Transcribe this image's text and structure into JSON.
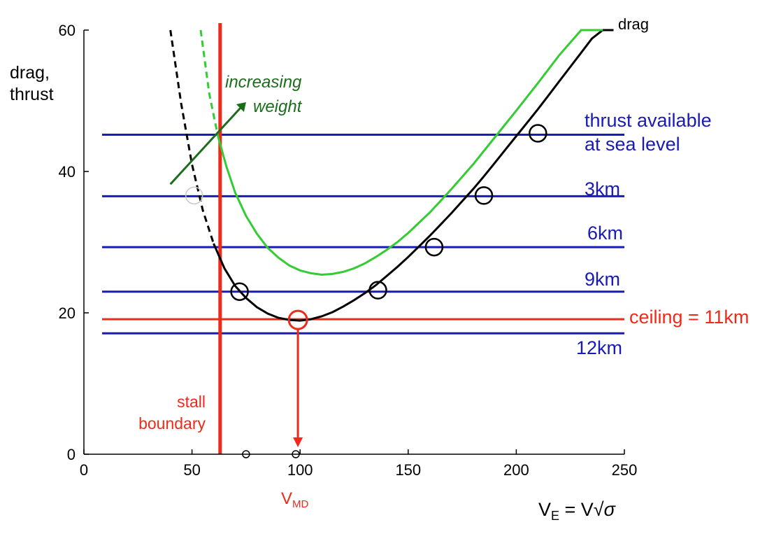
{
  "chart_data": {
    "type": "line",
    "xlabel": {
      "base": "V",
      "sub": "E",
      "rest": " = V√",
      "sigma": "σ"
    },
    "ylabel": [
      "drag,",
      "thrust"
    ],
    "xlim": [
      0,
      250
    ],
    "ylim": [
      0,
      60
    ],
    "xticks": [
      0,
      50,
      100,
      150,
      200,
      250
    ],
    "yticks": [
      0,
      20,
      40,
      60
    ],
    "grid": false,
    "series": [
      {
        "name": "drag",
        "color": "#000000",
        "x": [
          40,
          45,
          50,
          55,
          60,
          65,
          70,
          75,
          80,
          85,
          90,
          95,
          100,
          105,
          110,
          115,
          120,
          125,
          130,
          135,
          140,
          145,
          150,
          155,
          160,
          165,
          170,
          175,
          180,
          185,
          190,
          195,
          200,
          205,
          210,
          215,
          220,
          225,
          230,
          235,
          240,
          245
        ],
        "y": [
          60,
          49.6,
          41.0,
          34.5,
          29.8,
          26.3,
          23.8,
          22.1,
          20.8,
          19.9,
          19.3,
          19.0,
          18.9,
          19.1,
          19.5,
          20.1,
          20.9,
          21.8,
          22.8,
          23.9,
          25.2,
          26.5,
          27.9,
          29.4,
          30.9,
          32.5,
          34.1,
          35.8,
          37.5,
          39.3,
          41.2,
          43.1,
          45.0,
          46.9,
          48.8,
          50.8,
          52.8,
          54.8,
          56.8,
          58.8,
          60.0,
          61.0
        ],
        "dashed_below_x": 63
      },
      {
        "name": "drag (increased weight)",
        "color": "#33cc33",
        "x": [
          54,
          58,
          62,
          66,
          70,
          75,
          80,
          85,
          90,
          95,
          100,
          105,
          110,
          115,
          120,
          125,
          130,
          135,
          140,
          145,
          150,
          160,
          170,
          180,
          190,
          200,
          210,
          220,
          230,
          240
        ],
        "y": [
          60,
          51,
          45,
          40.6,
          37.0,
          33.7,
          31.2,
          29.2,
          27.8,
          26.7,
          26.0,
          25.6,
          25.4,
          25.5,
          25.8,
          26.3,
          27.0,
          27.9,
          28.9,
          30.0,
          31.3,
          34.2,
          37.5,
          41.0,
          44.8,
          48.6,
          52.5,
          56.5,
          60.0,
          61.0
        ],
        "dashed_below_x": 63
      }
    ],
    "thrust_lines": [
      {
        "label": [
          "thrust available",
          "at sea level"
        ],
        "y": 45.2,
        "color": "#1a1ab8"
      },
      {
        "label": [
          "3km"
        ],
        "y": 36.5,
        "color": "#1a1ab8"
      },
      {
        "label": [
          "6km"
        ],
        "y": 29.3,
        "color": "#1a1ab8"
      },
      {
        "label": [
          "9km"
        ],
        "y": 23.0,
        "color": "#1a1ab8"
      },
      {
        "label": [
          "12km"
        ],
        "y": 17.1,
        "color": "#1a1ab8"
      }
    ],
    "ceiling": {
      "label": "ceiling = 11km",
      "y": 19.1,
      "color": "#ee2a1b"
    },
    "stall": {
      "label": [
        "stall",
        "boundary"
      ],
      "x": 63,
      "color": "#ee2a1b"
    },
    "vmd": {
      "label_base": "V",
      "label_sub": "MD",
      "x": 99,
      "y": 19.0,
      "color": "#ee2a1b"
    },
    "intersection_markers": [
      {
        "x": 72,
        "y": 23.0
      },
      {
        "x": 136,
        "y": 23.2
      },
      {
        "x": 162,
        "y": 29.3
      },
      {
        "x": 185,
        "y": 36.6
      },
      {
        "x": 210,
        "y": 45.4
      }
    ],
    "faint_marker": {
      "x": 51,
      "y": 36.6
    },
    "axis_markers": [
      {
        "x": 75,
        "y": 0
      },
      {
        "x": 98,
        "y": 0
      }
    ],
    "annotation": {
      "text": [
        "increasing",
        "weight"
      ],
      "color": "#1a6e1a",
      "arrow_from": [
        40,
        38.2
      ],
      "arrow_to": [
        75,
        49.8
      ]
    },
    "drag_label": "drag"
  }
}
